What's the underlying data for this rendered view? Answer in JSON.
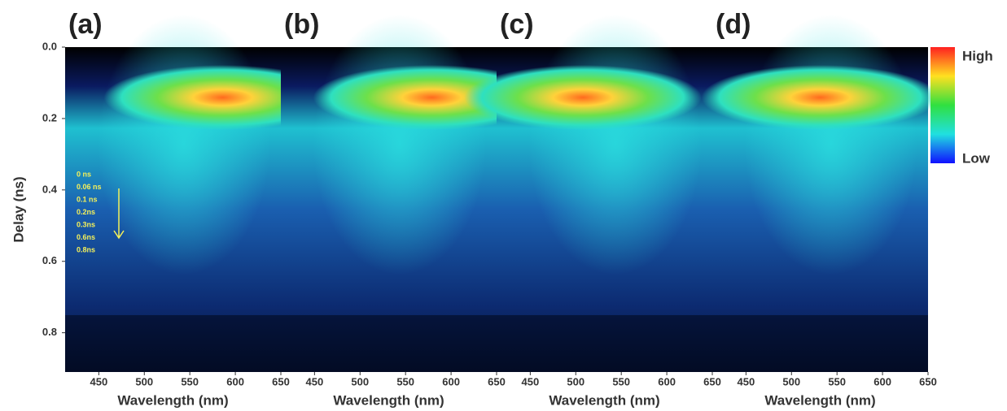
{
  "chart_data": [
    {
      "type": "heatmap",
      "title": "(a)",
      "xlabel": "Wavelength (nm)",
      "ylabel": "Delay (ns)",
      "xlim": [
        413,
        650
      ],
      "ylim": [
        0.91,
        0
      ],
      "xticks": [
        450,
        500,
        550,
        600,
        650
      ],
      "yticks": [
        {
          "value": 0,
          "label": "0.0"
        },
        0.2,
        0.4,
        0.6,
        0.8
      ],
      "annotations": [
        "0 ns",
        "0.06 ns",
        "0.1 ns",
        "0.2ns",
        "0.3ns",
        "0.6ns",
        "0.8ns"
      ]
    },
    {
      "type": "heatmap",
      "title": "(b)",
      "xlabel": "Wavelength (nm)",
      "xlim": [
        413,
        650
      ],
      "ylim": [
        0.91,
        0
      ],
      "xticks": [
        450,
        500,
        550,
        600,
        650
      ]
    },
    {
      "type": "heatmap",
      "title": "(c)",
      "xlabel": "Wavelength (nm)",
      "xlim": [
        413,
        650
      ],
      "ylim": [
        0.91,
        0
      ],
      "xticks": [
        450,
        500,
        550,
        600,
        650
      ]
    },
    {
      "type": "heatmap",
      "title": "(d)",
      "xlabel": "Wavelength (nm)",
      "xlim": [
        413,
        650
      ],
      "ylim": [
        0.91,
        0
      ],
      "xticks": [
        450,
        500,
        550,
        600,
        650
      ]
    }
  ],
  "colorbar": {
    "high": "High",
    "low": "Low"
  }
}
